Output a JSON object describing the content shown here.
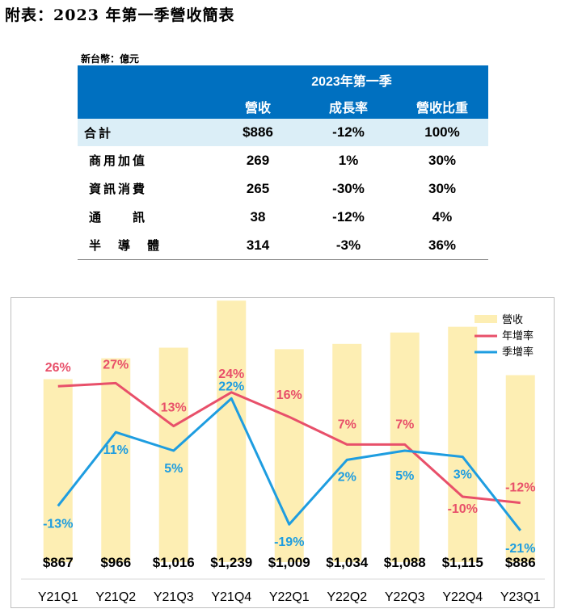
{
  "page": {
    "title": "附表：2023 年第一季營收簡表",
    "unit": "新台幣：億元"
  },
  "table": {
    "group_header": "2023年第一季",
    "columns": [
      "營收",
      "成長率",
      "營收比重"
    ],
    "total": {
      "name": "合計",
      "revenue": "$886",
      "growth": "-12%",
      "share": "100%"
    },
    "rows": [
      {
        "name": "商用加值",
        "revenue": "269",
        "growth": "1%",
        "share": "30%"
      },
      {
        "name": "資訊消費",
        "revenue": "265",
        "growth": "-30%",
        "share": "30%"
      },
      {
        "name": "通　　訊",
        "revenue": "38",
        "growth": "-12%",
        "share": "4%"
      },
      {
        "name": "半　導　體",
        "revenue": "314",
        "growth": "-3%",
        "share": "36%"
      }
    ]
  },
  "chart_data": {
    "type": "bar",
    "title": "",
    "categories": [
      "Y21Q1",
      "Y21Q2",
      "Y21Q3",
      "Y21Q4",
      "Y22Q1",
      "Y22Q2",
      "Y22Q3",
      "Y22Q4",
      "Y23Q1"
    ],
    "revenue_labels": [
      "$867",
      "$966",
      "$1,016",
      "$1,239",
      "$1,009",
      "$1,034",
      "$1,088",
      "$1,115",
      "$886"
    ],
    "series": [
      {
        "name": "營收",
        "type": "bar",
        "values": [
          867,
          966,
          1016,
          1239,
          1009,
          1034,
          1088,
          1115,
          886
        ],
        "color": "#fdeeb3"
      },
      {
        "name": "年增率",
        "type": "line",
        "values": [
          26,
          27,
          13,
          24,
          16,
          7,
          7,
          -10,
          -12
        ],
        "labels": [
          "26%",
          "27%",
          "13%",
          "24%",
          "16%",
          "7%",
          "7%",
          "-10%",
          "-12%"
        ],
        "color": "#e8506a"
      },
      {
        "name": "季增率",
        "type": "line",
        "values": [
          -13,
          11,
          5,
          22,
          -19,
          2,
          5,
          3,
          -21
        ],
        "labels": [
          "-13%",
          "11%",
          "5%",
          "22%",
          "-19%",
          "2%",
          "5%",
          "3%",
          "-21%"
        ],
        "color": "#1e9de0"
      }
    ],
    "legend_position": "top-right",
    "grid": false
  }
}
